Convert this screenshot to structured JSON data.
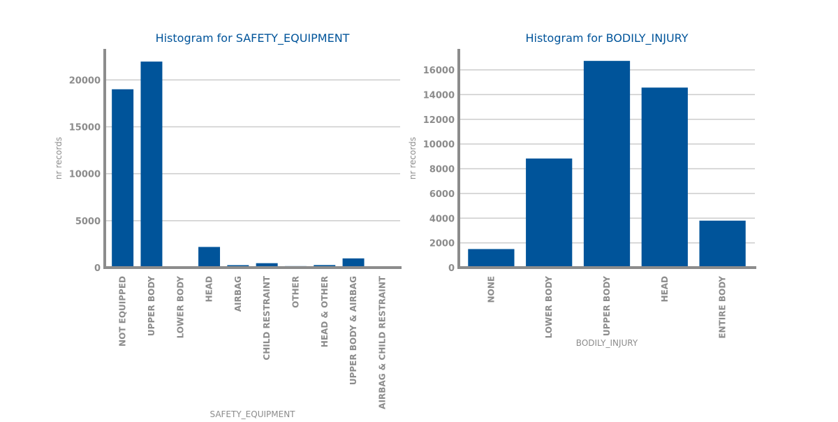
{
  "chart_data": [
    {
      "type": "bar",
      "title": "Histogram for SAFETY_EQUIPMENT",
      "xlabel": "SAFETY_EQUIPMENT",
      "ylabel": "nr records",
      "ylim": [
        0,
        23300
      ],
      "yticks": [
        0,
        5000,
        10000,
        15000,
        20000
      ],
      "grid": true,
      "bar_color": "#00549a",
      "categories": [
        "NOT EQUIPPED",
        "UPPER BODY",
        "LOWER BODY",
        "HEAD",
        "AIRBAG",
        "CHILD RESTRAINT",
        "OTHER",
        "HEAD & OTHER",
        "UPPER BODY & AIRBAG",
        "AIRBAG & CHILD RESTRAINT"
      ],
      "values": [
        19000,
        21950,
        20,
        2200,
        260,
        470,
        160,
        270,
        980,
        15
      ]
    },
    {
      "type": "bar",
      "title": "Histogram for BODILY_INJURY",
      "xlabel": "BODILY_INJURY",
      "ylabel": "nr records",
      "ylim": [
        0,
        17700
      ],
      "yticks": [
        0,
        2000,
        4000,
        6000,
        8000,
        10000,
        12000,
        14000,
        16000
      ],
      "grid": true,
      "bar_color": "#00549a",
      "categories": [
        "NONE",
        "LOWER BODY",
        "UPPER BODY",
        "HEAD",
        "ENTIRE BODY"
      ],
      "values": [
        1500,
        8830,
        16730,
        14570,
        3800
      ]
    }
  ]
}
